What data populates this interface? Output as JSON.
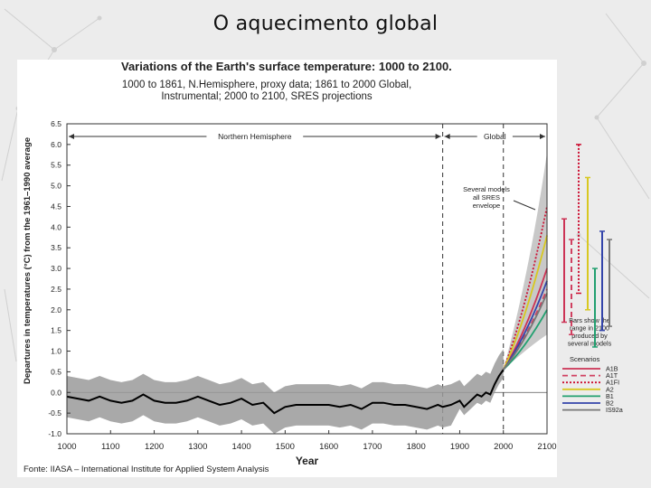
{
  "slide": {
    "title": "O aquecimento global",
    "source": "Fonte: IIASA – International Institute for Applied System Analysis"
  },
  "colors": {
    "uncertainty_band": "#9a9a9a",
    "envelope": "#c8c8c8",
    "record_line": "#000000"
  },
  "chart_data": {
    "type": "line",
    "title": "Variations of the Earth's surface temperature: 1000 to 2100.",
    "subtitle": "1000 to 1861, N.Hemisphere, proxy data; 1861 to 2000 Global, Instrumental; 2000 to 2100, SRES projections",
    "xlabel": "Year",
    "ylabel": "Departures in temperatures (°C) from the 1961–1990 average",
    "xlim": [
      1000,
      2100
    ],
    "ylim": [
      -1.0,
      6.5
    ],
    "x_ticks": [
      "1000",
      "1100",
      "1200",
      "1300",
      "1400",
      "1500",
      "1600",
      "1700",
      "1800",
      "1900",
      "2000",
      "2100"
    ],
    "y_ticks": [
      "-1.0",
      "-0.5",
      "0.0",
      "0.5",
      "1.0",
      "1.5",
      "2.0",
      "2.5",
      "3.0",
      "3.5",
      "4.0",
      "4.5",
      "5.0",
      "5.5",
      "6.0",
      "6.5"
    ],
    "regions": [
      {
        "label": "Northern Hemisphere",
        "from": 1000,
        "to": 1861
      },
      {
        "label": "Global",
        "from": 1861,
        "to": 2100
      }
    ],
    "annotations": {
      "envelope": "Several models all SRES envelope",
      "bars_note": "Bars show the range in 2100 produced by several models"
    },
    "legend_title": "Scenarios",
    "historical": {
      "x": [
        1000,
        1025,
        1050,
        1075,
        1100,
        1125,
        1150,
        1175,
        1200,
        1225,
        1250,
        1275,
        1300,
        1325,
        1350,
        1375,
        1400,
        1425,
        1450,
        1475,
        1500,
        1525,
        1550,
        1575,
        1600,
        1625,
        1650,
        1675,
        1700,
        1725,
        1750,
        1775,
        1800,
        1825,
        1850,
        1861,
        1880,
        1900,
        1910,
        1920,
        1930,
        1940,
        1950,
        1960,
        1970,
        1980,
        1990,
        2000
      ],
      "y": [
        -0.1,
        -0.15,
        -0.2,
        -0.1,
        -0.2,
        -0.25,
        -0.2,
        -0.05,
        -0.2,
        -0.25,
        -0.25,
        -0.2,
        -0.1,
        -0.2,
        -0.3,
        -0.25,
        -0.15,
        -0.3,
        -0.25,
        -0.5,
        -0.35,
        -0.3,
        -0.3,
        -0.3,
        -0.3,
        -0.35,
        -0.3,
        -0.4,
        -0.25,
        -0.25,
        -0.3,
        -0.3,
        -0.35,
        -0.4,
        -0.3,
        -0.35,
        -0.3,
        -0.2,
        -0.35,
        -0.25,
        -0.15,
        -0.05,
        -0.1,
        0.0,
        -0.05,
        0.2,
        0.4,
        0.55
      ]
    },
    "band_halfwidth": 0.5,
    "envelope_2100": [
      1.4,
      5.8
    ],
    "series": [
      {
        "name": "A1B",
        "color": "#cc3355",
        "dash": "",
        "end": 3.0,
        "range": [
          1.7,
          4.2
        ]
      },
      {
        "name": "A1T",
        "color": "#d04060",
        "dash": "6,4",
        "end": 2.5,
        "range": [
          1.4,
          3.7
        ]
      },
      {
        "name": "A1FI",
        "color": "#cc1133",
        "dash": "2,2",
        "end": 4.5,
        "range": [
          2.4,
          6.0
        ]
      },
      {
        "name": "A2",
        "color": "#d8c820",
        "dash": "",
        "end": 3.8,
        "range": [
          2.0,
          5.2
        ]
      },
      {
        "name": "B1",
        "color": "#22a070",
        "dash": "",
        "end": 2.0,
        "range": [
          1.1,
          3.0
        ]
      },
      {
        "name": "B2",
        "color": "#3344aa",
        "dash": "",
        "end": 2.7,
        "range": [
          1.5,
          3.9
        ]
      },
      {
        "name": "IS92a",
        "color": "#777777",
        "dash": "",
        "end": 2.4,
        "range": [
          1.6,
          3.7
        ]
      }
    ]
  }
}
